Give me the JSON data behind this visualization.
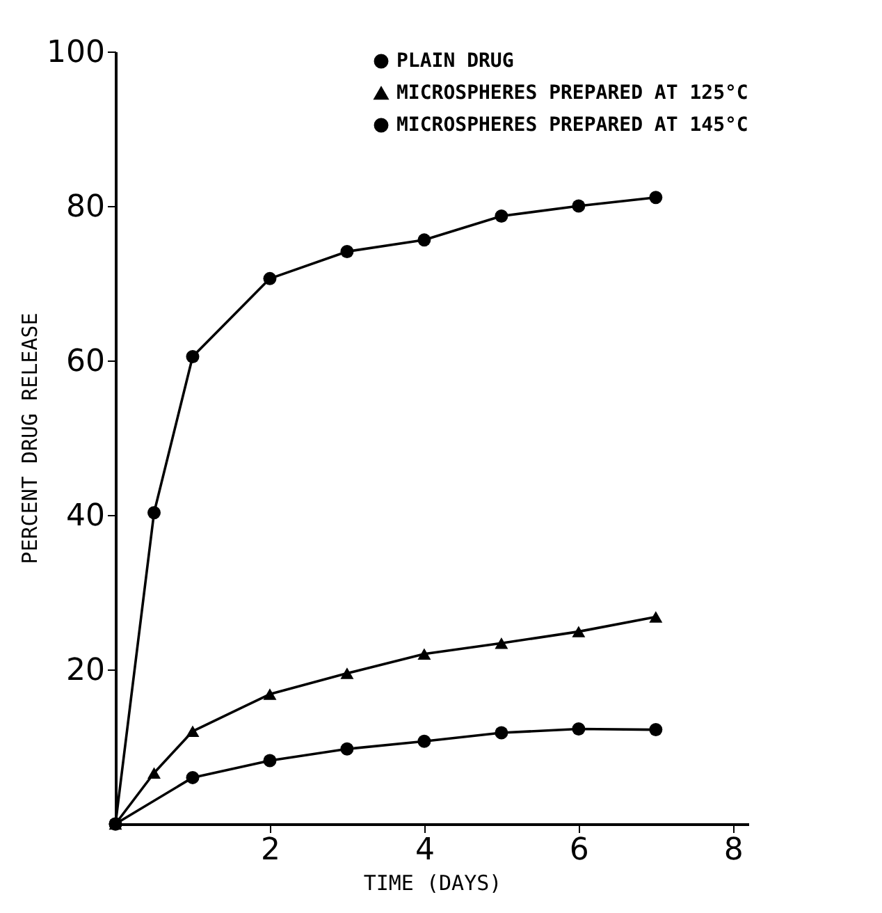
{
  "chart_data": {
    "type": "line",
    "xlabel": "TIME (DAYS)",
    "ylabel": "PERCENT DRUG RELEASE",
    "xlim": [
      0,
      8.2
    ],
    "xticks": [
      2,
      4,
      6,
      8
    ],
    "ylim": [
      0,
      100
    ],
    "yticks": [
      20,
      40,
      60,
      80,
      100
    ],
    "grid": false,
    "legend": "top right",
    "line_style": "solid",
    "series": [
      {
        "name": "PLAIN DRUG",
        "color": "#000000",
        "marker": "circle",
        "x": [
          0,
          0.5,
          1,
          2,
          3,
          4,
          5,
          6,
          7
        ],
        "values": [
          0,
          40.3,
          60.5,
          70.6,
          74.1,
          75.6,
          78.7,
          80,
          81.1
        ]
      },
      {
        "name": "MICROSPHERES PREPARED AT 125°C",
        "color": "#000000",
        "marker": "triangle",
        "x": [
          0,
          0.5,
          1,
          2,
          3,
          4,
          5,
          6,
          7
        ],
        "values": [
          0,
          6.6,
          12,
          16.8,
          19.5,
          22,
          23.4,
          24.9,
          26.8
        ]
      },
      {
        "name": "MICROSPHERES PREPARED AT 145°C",
        "color": "#000000",
        "marker": "circle",
        "x": [
          0,
          1,
          2,
          3,
          4,
          5,
          6,
          7
        ],
        "values": [
          0,
          6,
          8.2,
          9.7,
          10.7,
          11.8,
          12.3,
          12.2
        ]
      }
    ]
  }
}
